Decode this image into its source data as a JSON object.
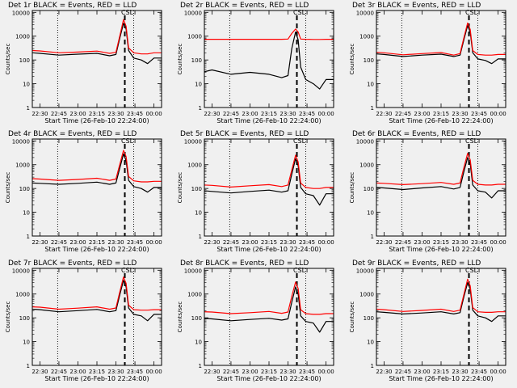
{
  "figure": {
    "background": "#f0f0f0",
    "colors": {
      "events": "#000000",
      "lld": "#ff0000",
      "axes": "#000000"
    },
    "panels": [
      {
        "title": "Det 1r BLACK = Events, RED = LLD"
      },
      {
        "title": "Det 2r BLACK = Events, RED = LLD"
      },
      {
        "title": "Det 3r BLACK = Events, RED = LLD"
      },
      {
        "title": "Det 4r BLACK = Events, RED = LLD"
      },
      {
        "title": "Det 5r BLACK = Events, RED = LLD"
      },
      {
        "title": "Det 6r BLACK = Events, RED = LLD"
      },
      {
        "title": "Det 7r BLACK = Events, RED = LLD"
      },
      {
        "title": "Det 8r BLACK = Events, RED = LLD"
      },
      {
        "title": "Det 9r BLACK = Events, RED = LLD"
      }
    ],
    "annotation": "CSL",
    "xlabel": "Start Time (26-Feb-10 22:24:00)",
    "ylabel": "Counts/sec"
  },
  "chart_data": {
    "type": "line",
    "xlabel": "Start Time (26-Feb-10 22:24:00)",
    "ylabel": "Counts/sec",
    "yscale": "log",
    "ylim": [
      1,
      12000
    ],
    "xlim": [
      "22:24",
      "00:06"
    ],
    "x_ticks": [
      "22:30",
      "22:45",
      "23:00",
      "23:15",
      "23:30",
      "23:45",
      "00:00"
    ],
    "y_ticks": [
      "1",
      "10",
      "100",
      "1000",
      "10000"
    ],
    "vertical_lines": [
      {
        "time": "22:44",
        "style": "dotted"
      },
      {
        "time": "23:37",
        "style": "dashed",
        "label": "CSL"
      },
      {
        "time": "23:44",
        "style": "dotted"
      }
    ],
    "x": [
      "22:24",
      "22:30",
      "22:45",
      "23:00",
      "23:15",
      "23:25",
      "23:30",
      "23:33",
      "23:36",
      "23:38",
      "23:40",
      "23:44",
      "23:50",
      "23:55",
      "00:00",
      "00:06"
    ],
    "panels": [
      {
        "detector": "Det 1r",
        "series": [
          {
            "name": "Events",
            "color": "#000000",
            "values": [
              200,
              190,
              160,
              175,
              190,
              150,
              170,
              800,
              3500,
              2000,
              250,
              120,
              100,
              70,
              120,
              120
            ]
          },
          {
            "name": "LLD",
            "color": "#ff0000",
            "values": [
              250,
              240,
              200,
              215,
              235,
              190,
              210,
              1000,
              5000,
              2600,
              320,
              200,
              180,
              180,
              200,
              200
            ]
          }
        ]
      },
      {
        "detector": "Det 2r",
        "series": [
          {
            "name": "Events",
            "color": "#000000",
            "values": [
              32,
              38,
              25,
              30,
              25,
              18,
              22,
              300,
              1500,
              700,
              50,
              15,
              10,
              6,
              15,
              15
            ]
          },
          {
            "name": "LLD",
            "color": "#ff0000",
            "values": [
              740,
              740,
              740,
              740,
              740,
              740,
              760,
              1300,
              2000,
              1500,
              760,
              740,
              730,
              730,
              740,
              740
            ]
          }
        ]
      },
      {
        "detector": "Det 3r",
        "series": [
          {
            "name": "Events",
            "color": "#000000",
            "values": [
              180,
              170,
              140,
              160,
              175,
              140,
              160,
              700,
              2800,
              1500,
              200,
              110,
              95,
              70,
              110,
              110
            ]
          },
          {
            "name": "LLD",
            "color": "#ff0000",
            "values": [
              210,
              200,
              165,
              185,
              205,
              160,
              185,
              850,
              3600,
              1900,
              250,
              170,
              160,
              160,
              170,
              170
            ]
          }
        ]
      },
      {
        "detector": "Det 4r",
        "series": [
          {
            "name": "Events",
            "color": "#000000",
            "values": [
              170,
              165,
              150,
              165,
              185,
              150,
              170,
              700,
              2800,
              1500,
              220,
              120,
              100,
              70,
              110,
              110
            ]
          },
          {
            "name": "LLD",
            "color": "#ff0000",
            "values": [
              260,
              250,
              220,
              240,
              270,
              220,
              250,
              1000,
              4000,
              2200,
              320,
              210,
              190,
              190,
              200,
              200
            ]
          }
        ]
      },
      {
        "detector": "Det 5r",
        "series": [
          {
            "name": "Events",
            "color": "#000000",
            "values": [
              80,
              75,
              65,
              75,
              85,
              70,
              80,
              400,
              1800,
              900,
              110,
              60,
              50,
              20,
              60,
              60
            ]
          },
          {
            "name": "LLD",
            "color": "#ff0000",
            "values": [
              140,
              135,
              115,
              130,
              145,
              120,
              140,
              600,
              2500,
              1300,
              170,
              110,
              100,
              100,
              110,
              110
            ]
          }
        ]
      },
      {
        "detector": "Det 6r",
        "series": [
          {
            "name": "Events",
            "color": "#000000",
            "values": [
              110,
              105,
              90,
              105,
              120,
              95,
              110,
              500,
              2000,
              1100,
              140,
              80,
              70,
              40,
              80,
              80
            ]
          },
          {
            "name": "LLD",
            "color": "#ff0000",
            "values": [
              170,
              165,
              145,
              160,
              180,
              150,
              170,
              750,
              3000,
              1600,
              220,
              150,
              140,
              140,
              150,
              150
            ]
          }
        ]
      },
      {
        "detector": "Det 7r",
        "series": [
          {
            "name": "Events",
            "color": "#000000",
            "values": [
              230,
              220,
              180,
              200,
              225,
              180,
              200,
              900,
              3800,
              2000,
              260,
              140,
              120,
              75,
              140,
              140
            ]
          },
          {
            "name": "LLD",
            "color": "#ff0000",
            "values": [
              290,
              280,
              230,
              255,
              290,
              230,
              260,
              1200,
              5200,
              2800,
              340,
              220,
              210,
              210,
              220,
              220
            ]
          }
        ]
      },
      {
        "detector": "Det 8r",
        "series": [
          {
            "name": "Events",
            "color": "#000000",
            "values": [
              95,
              90,
              75,
              85,
              95,
              80,
              90,
              450,
              2000,
              1000,
              120,
              70,
              60,
              25,
              70,
              70
            ]
          },
          {
            "name": "LLD",
            "color": "#ff0000",
            "values": [
              180,
              175,
              150,
              165,
              185,
              155,
              175,
              800,
              3200,
              1700,
              220,
              150,
              140,
              140,
              150,
              150
            ]
          }
        ]
      },
      {
        "detector": "Det 9r",
        "series": [
          {
            "name": "Events",
            "color": "#000000",
            "values": [
              180,
              170,
              145,
              160,
              180,
              145,
              165,
              750,
              3000,
              1600,
              210,
              120,
              100,
              70,
              120,
              120
            ]
          },
          {
            "name": "LLD",
            "color": "#ff0000",
            "values": [
              230,
              220,
              185,
              205,
              230,
              185,
              210,
              950,
              4200,
              2200,
              270,
              180,
              170,
              170,
              180,
              180
            ]
          }
        ]
      }
    ]
  }
}
